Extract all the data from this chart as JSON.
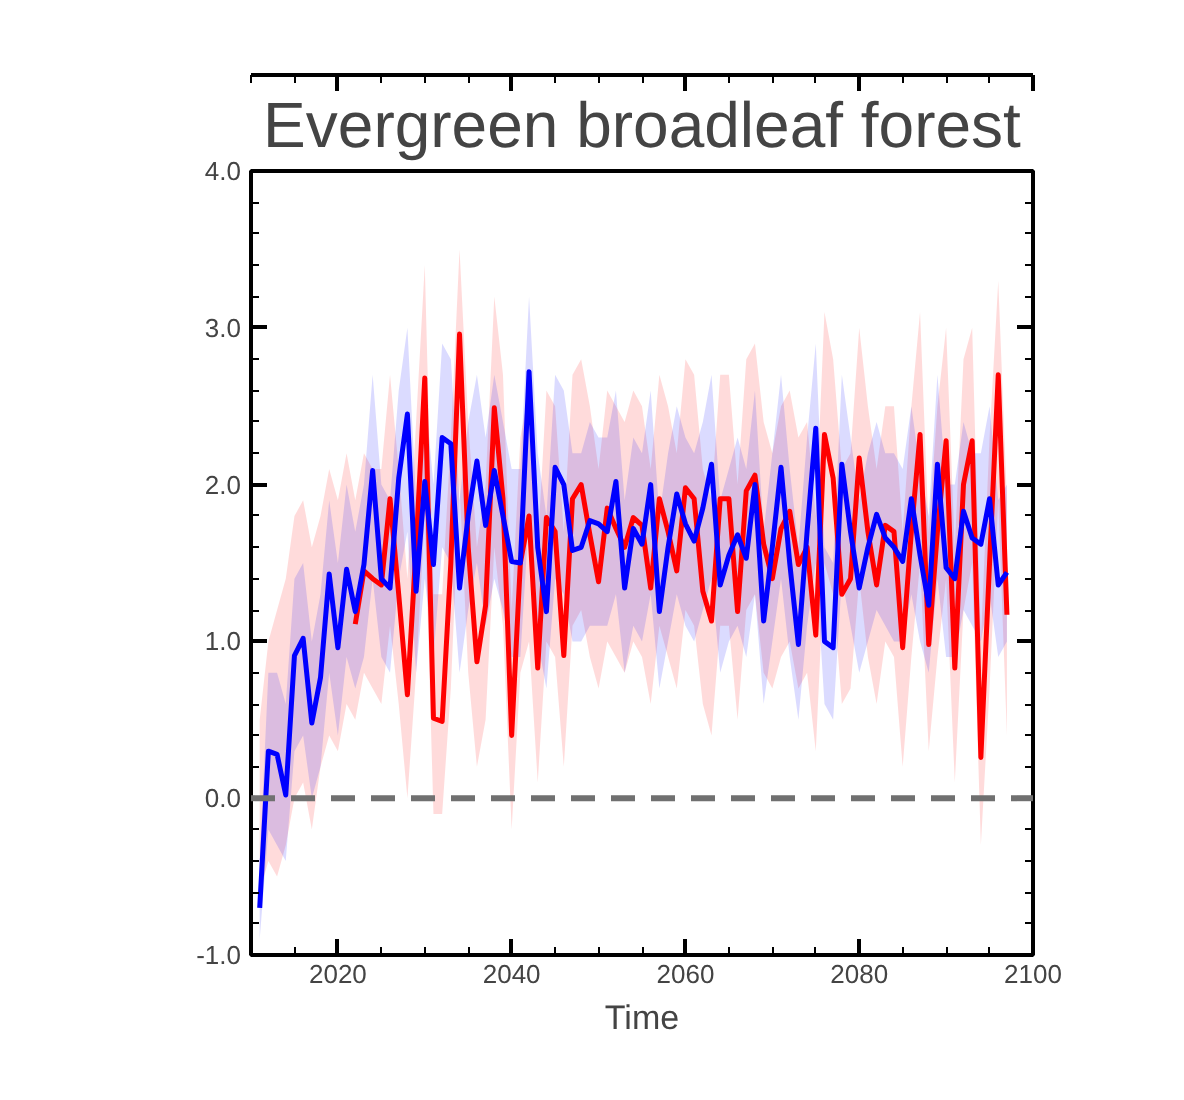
{
  "chart_data": {
    "type": "line",
    "title": "Evergreen broadleaf forest",
    "xlabel": "Time",
    "x": [
      2011,
      2012,
      2013,
      2014,
      2015,
      2016,
      2017,
      2018,
      2019,
      2020,
      2021,
      2022,
      2023,
      2024,
      2025,
      2026,
      2027,
      2028,
      2029,
      2030,
      2031,
      2032,
      2033,
      2034,
      2035,
      2036,
      2037,
      2038,
      2039,
      2040,
      2041,
      2042,
      2043,
      2044,
      2045,
      2046,
      2047,
      2048,
      2049,
      2050,
      2051,
      2052,
      2053,
      2054,
      2055,
      2056,
      2057,
      2058,
      2059,
      2060,
      2061,
      2062,
      2063,
      2064,
      2065,
      2066,
      2067,
      2068,
      2069,
      2070,
      2071,
      2072,
      2073,
      2074,
      2075,
      2076,
      2077,
      2078,
      2079,
      2080,
      2081,
      2082,
      2083,
      2084,
      2085,
      2086,
      2087,
      2088,
      2089,
      2090,
      2091,
      2092,
      2093,
      2094,
      2095,
      2096,
      2097
    ],
    "series": [
      {
        "color": "#ff0000",
        "values": [
          null,
          null,
          null,
          null,
          null,
          null,
          null,
          null,
          null,
          null,
          null,
          1.11,
          1.45,
          1.4,
          1.36,
          1.91,
          1.3,
          0.66,
          1.6,
          2.68,
          0.51,
          0.49,
          1.5,
          2.96,
          1.6,
          0.87,
          1.23,
          2.49,
          1.91,
          0.4,
          1.5,
          1.8,
          0.83,
          1.79,
          1.7,
          0.91,
          1.91,
          2.0,
          1.68,
          1.38,
          1.85,
          1.72,
          1.6,
          1.79,
          1.74,
          1.34,
          1.91,
          1.7,
          1.45,
          1.98,
          1.91,
          1.32,
          1.13,
          1.91,
          1.91,
          1.19,
          1.96,
          2.06,
          1.62,
          1.4,
          1.72,
          1.83,
          1.49,
          1.6,
          1.04,
          2.32,
          2.04,
          1.3,
          1.4,
          2.17,
          1.7,
          1.36,
          1.74,
          1.7,
          0.96,
          1.7,
          2.32,
          0.98,
          1.7,
          2.28,
          0.83,
          2.0,
          2.28,
          0.26,
          1.5,
          2.7,
          1.17
        ],
        "lower": [
          -0.6,
          -0.4,
          -0.5,
          -0.3,
          0.0,
          0.1,
          -0.2,
          0.2,
          0.4,
          0.3,
          0.6,
          0.5,
          0.8,
          0.7,
          0.6,
          1.1,
          0.6,
          0.0,
          0.8,
          1.8,
          -0.1,
          -0.1,
          0.7,
          2.0,
          0.8,
          0.2,
          0.5,
          1.6,
          1.1,
          -0.2,
          0.8,
          1.0,
          0.1,
          1.0,
          0.9,
          0.2,
          1.1,
          1.2,
          0.9,
          0.7,
          1.0,
          0.9,
          0.8,
          1.0,
          0.9,
          0.6,
          1.1,
          0.9,
          0.7,
          1.2,
          1.1,
          0.6,
          0.4,
          1.1,
          1.1,
          0.5,
          1.2,
          1.3,
          0.8,
          0.7,
          0.9,
          1.0,
          0.7,
          0.8,
          0.3,
          1.5,
          1.3,
          0.6,
          0.7,
          1.4,
          0.9,
          0.6,
          1.0,
          0.9,
          0.2,
          0.9,
          1.5,
          0.3,
          0.9,
          1.4,
          0.1,
          1.2,
          1.5,
          -0.3,
          0.7,
          1.9,
          0.4
        ],
        "upper": [
          0.5,
          1.0,
          1.2,
          1.4,
          1.8,
          1.9,
          1.6,
          1.8,
          2.1,
          1.9,
          2.2,
          1.9,
          2.2,
          2.1,
          2.1,
          2.7,
          2.1,
          1.4,
          2.4,
          3.4,
          1.3,
          1.3,
          2.3,
          3.5,
          2.4,
          1.6,
          2.0,
          3.2,
          2.7,
          1.2,
          2.3,
          2.6,
          1.6,
          2.6,
          2.5,
          1.7,
          2.7,
          2.8,
          2.5,
          2.1,
          2.6,
          2.5,
          2.4,
          2.6,
          2.5,
          2.1,
          2.7,
          2.5,
          2.2,
          2.8,
          2.7,
          2.1,
          1.9,
          2.7,
          2.7,
          2.0,
          2.8,
          2.9,
          2.4,
          2.2,
          2.5,
          2.6,
          2.3,
          2.4,
          1.8,
          3.1,
          2.8,
          2.1,
          2.2,
          3.0,
          2.5,
          2.1,
          2.5,
          2.5,
          1.7,
          2.5,
          3.1,
          1.7,
          2.5,
          3.0,
          1.6,
          2.8,
          3.0,
          1.0,
          2.3,
          3.3,
          1.9
        ]
      },
      {
        "color": "#0000ff",
        "values": [
          -0.7,
          0.3,
          0.28,
          0.02,
          0.91,
          1.02,
          0.48,
          0.77,
          1.43,
          0.96,
          1.46,
          1.19,
          1.49,
          2.09,
          1.4,
          1.34,
          2.04,
          2.45,
          1.32,
          2.02,
          1.49,
          2.3,
          2.26,
          1.34,
          1.8,
          2.15,
          1.74,
          2.09,
          1.8,
          1.51,
          1.5,
          2.72,
          1.6,
          1.19,
          2.11,
          2.0,
          1.58,
          1.6,
          1.77,
          1.75,
          1.7,
          2.02,
          1.34,
          1.72,
          1.62,
          2.0,
          1.19,
          1.6,
          1.94,
          1.75,
          1.64,
          1.85,
          2.13,
          1.36,
          1.55,
          1.68,
          1.53,
          2.0,
          1.13,
          1.6,
          2.11,
          1.5,
          0.98,
          1.7,
          2.36,
          1.0,
          0.96,
          2.13,
          1.7,
          1.34,
          1.6,
          1.81,
          1.66,
          1.6,
          1.51,
          1.91,
          1.55,
          1.23,
          2.13,
          1.47,
          1.4,
          1.83,
          1.66,
          1.62,
          1.91,
          1.36,
          1.44
        ],
        "lower": [
          -0.9,
          -0.2,
          -0.3,
          -0.4,
          0.3,
          0.4,
          0.0,
          0.2,
          0.8,
          0.4,
          0.9,
          0.7,
          0.9,
          1.4,
          0.9,
          0.8,
          1.4,
          1.7,
          0.8,
          1.4,
          0.9,
          1.6,
          1.5,
          0.8,
          1.2,
          1.5,
          1.1,
          1.4,
          1.2,
          0.9,
          0.9,
          1.8,
          1.0,
          0.7,
          1.4,
          1.3,
          1.0,
          1.0,
          1.1,
          1.1,
          1.1,
          1.3,
          0.8,
          1.1,
          1.0,
          1.3,
          0.7,
          1.0,
          1.3,
          1.1,
          1.0,
          1.2,
          1.4,
          0.8,
          1.0,
          1.1,
          0.9,
          1.3,
          0.6,
          1.0,
          1.4,
          0.9,
          0.5,
          1.1,
          1.5,
          0.6,
          0.5,
          1.4,
          1.1,
          0.8,
          1.0,
          1.2,
          1.1,
          1.0,
          1.0,
          1.3,
          1.0,
          0.8,
          1.4,
          0.9,
          0.9,
          1.2,
          1.1,
          1.0,
          1.3,
          0.9,
          1.0
        ],
        "upper": [
          -0.4,
          0.8,
          0.8,
          0.6,
          1.4,
          1.5,
          1.0,
          1.3,
          1.9,
          1.5,
          2.0,
          1.7,
          2.0,
          2.7,
          2.0,
          1.9,
          2.6,
          3.0,
          1.9,
          2.6,
          2.0,
          2.9,
          2.8,
          1.9,
          2.4,
          2.7,
          2.3,
          2.7,
          2.4,
          2.1,
          2.1,
          3.2,
          2.2,
          1.8,
          2.7,
          2.6,
          2.2,
          2.2,
          2.4,
          2.3,
          2.3,
          2.6,
          1.9,
          2.3,
          2.2,
          2.6,
          1.8,
          2.2,
          2.5,
          2.3,
          2.2,
          2.4,
          2.7,
          1.9,
          2.1,
          2.3,
          2.1,
          2.6,
          1.7,
          2.2,
          2.7,
          2.1,
          1.6,
          2.3,
          2.9,
          1.6,
          1.5,
          2.7,
          2.3,
          1.9,
          2.2,
          2.4,
          2.2,
          2.2,
          2.1,
          2.5,
          2.1,
          1.8,
          2.7,
          2.0,
          2.0,
          2.4,
          2.2,
          2.2,
          2.5,
          1.9,
          2.0
        ]
      }
    ],
    "xlim": [
      2010,
      2100
    ],
    "ylim": [
      -1,
      4
    ],
    "xticks": [
      2020,
      2040,
      2060,
      2080,
      2100
    ],
    "yticks": [
      {
        "value": -1,
        "label": "-1.0"
      },
      {
        "value": 0,
        "label": "0.0"
      },
      {
        "value": 1,
        "label": "1.0"
      },
      {
        "value": 2,
        "label": "2.0"
      },
      {
        "value": 3,
        "label": "3.0"
      },
      {
        "value": 4,
        "label": "4.0"
      }
    ],
    "ref_lines": [
      {
        "axis": "y",
        "value": 0,
        "color": "#707070",
        "line_style": "dashed"
      }
    ],
    "line_style": "solid"
  }
}
